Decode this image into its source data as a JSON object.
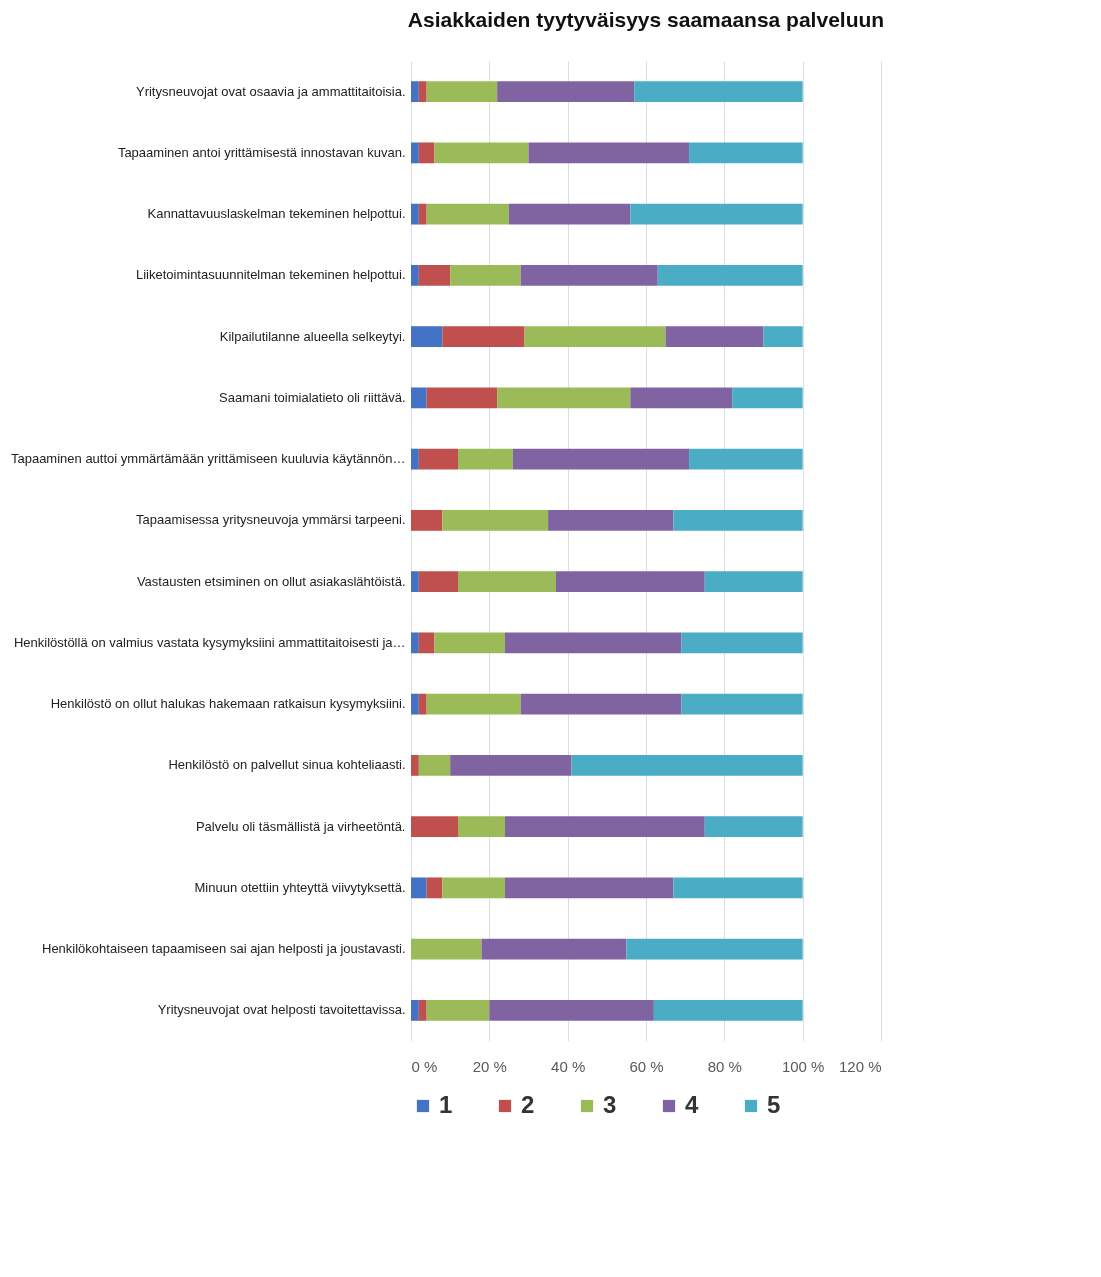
{
  "chart_data": {
    "type": "bar",
    "orientation": "horizontal",
    "stacked": true,
    "title": "Asiakkaiden tyytyväisyys saamaansa palveluun",
    "categories": [
      "Yritysneuvojat ovat osaavia ja ammattitaitoisia.",
      "Tapaaminen antoi yrittämisestä innostavan kuvan.",
      "Kannattavuuslaskelman tekeminen helpottui.",
      "Liiketoimintasuunnitelman tekeminen helpottui.",
      "Kilpailutilanne alueella selkeytyi.",
      "Saamani toimialatieto oli riittävä.",
      "Tapaaminen auttoi ymmärtämään yrittämiseen kuuluvia käytännön…",
      "Tapaamisessa yritysneuvoja ymmärsi tarpeeni.",
      "Vastausten etsiminen on ollut asiakaslähtöistä.",
      "Henkilöstöllä on valmius vastata kysymyksiini ammattitaitoisesti ja…",
      "Henkilöstö on ollut halukas hakemaan ratkaisun kysymyksiini.",
      "Henkilöstö on palvellut sinua kohteliaasti.",
      "Palvelu oli täsmällistä ja virheetöntä.",
      "Minuun otettiin yhteyttä viivytyksettä.",
      "Henkilökohtaiseen tapaamiseen sai ajan helposti ja joustavasti.",
      "Yritysneuvojat ovat helposti tavoitettavissa."
    ],
    "series": [
      {
        "name": "1",
        "color": "#4472c4",
        "values": [
          2,
          2,
          2,
          2,
          8,
          4,
          2,
          0,
          2,
          2,
          2,
          0,
          0,
          4,
          0,
          2
        ]
      },
      {
        "name": "2",
        "color": "#c0504d",
        "values": [
          2,
          4,
          2,
          8,
          21,
          18,
          10,
          8,
          10,
          4,
          2,
          2,
          12,
          4,
          0,
          2
        ]
      },
      {
        "name": "3",
        "color": "#9bbb59",
        "values": [
          18,
          24,
          21,
          18,
          36,
          34,
          14,
          27,
          25,
          18,
          24,
          8,
          12,
          16,
          18,
          16
        ]
      },
      {
        "name": "4",
        "color": "#8064a2",
        "values": [
          35,
          41,
          31,
          35,
          25,
          26,
          45,
          32,
          38,
          45,
          41,
          31,
          51,
          43,
          37,
          42
        ]
      },
      {
        "name": "5",
        "color": "#4bacc6",
        "values": [
          43,
          29,
          44,
          37,
          10,
          18,
          29,
          33,
          25,
          31,
          31,
          59,
          25,
          33,
          45,
          38
        ]
      }
    ],
    "xlim": [
      0,
      120
    ],
    "xticks": [
      {
        "value": 0,
        "label": "0 %"
      },
      {
        "value": 20,
        "label": "20 %"
      },
      {
        "value": 40,
        "label": "40 %"
      },
      {
        "value": 60,
        "label": "60 %"
      },
      {
        "value": 80,
        "label": "80 %"
      },
      {
        "value": 100,
        "label": "100 %"
      },
      {
        "value": 120,
        "label": "120 %"
      }
    ],
    "grid": "x",
    "legend": "bottom"
  }
}
